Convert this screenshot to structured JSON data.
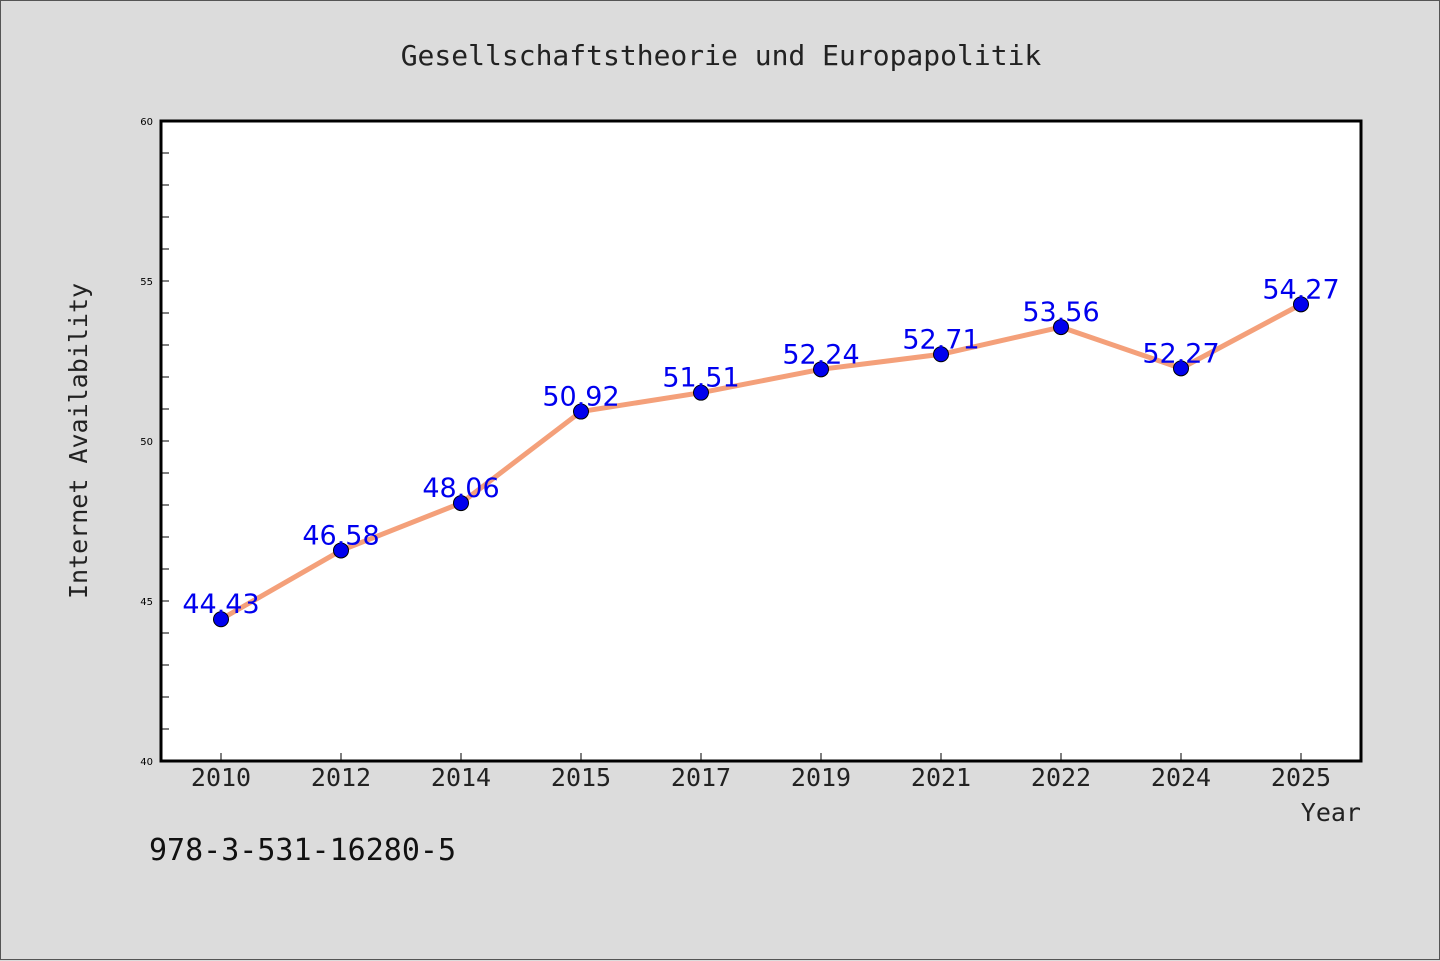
{
  "chart_data": {
    "type": "line",
    "title": "Gesellschaftstheorie und Europapolitik",
    "xlabel": "Year",
    "ylabel": "Internet Availability",
    "categories": [
      "2010",
      "2012",
      "2014",
      "2015",
      "2017",
      "2019",
      "2021",
      "2022",
      "2024",
      "2025"
    ],
    "series": [
      {
        "values": [
          44.43,
          46.58,
          48.06,
          50.92,
          51.51,
          52.24,
          52.71,
          53.56,
          52.27,
          54.27
        ],
        "data_labels": [
          "44.43",
          "46.58",
          "48.06",
          "50.92",
          "51.51",
          "52.24",
          "52.71",
          "53.56",
          "52.27",
          "54.27"
        ],
        "line_color": "#f4a07a",
        "marker_color": "#0000ee",
        "label_color": "#0000ee"
      }
    ],
    "ylim": [
      40,
      60
    ],
    "y_ticks": [
      "40",
      "45",
      "50",
      "55",
      "60"
    ],
    "grid": false,
    "legend": "none"
  },
  "isbn": "978-3-531-16280-5",
  "colors": {
    "background": "#dcdcdc",
    "plot_background": "#ffffff",
    "axis": "#000000"
  }
}
